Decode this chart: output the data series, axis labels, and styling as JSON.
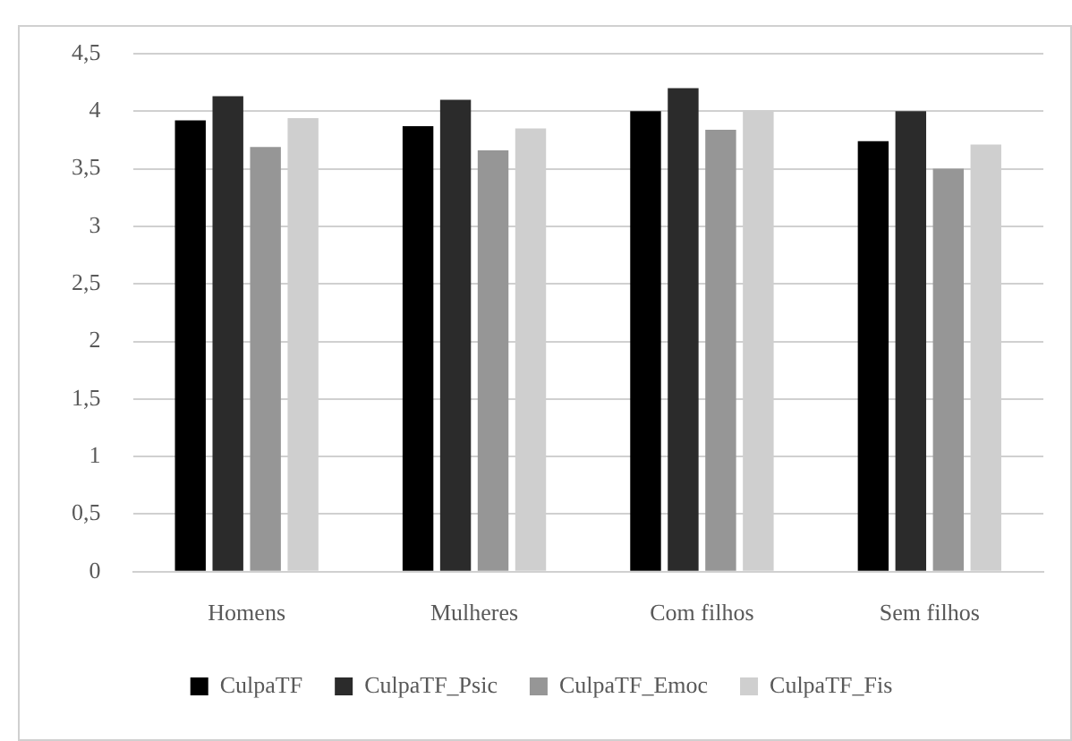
{
  "chart_data": {
    "type": "bar",
    "categories": [
      "Homens",
      "Mulheres",
      "Com filhos",
      "Sem filhos"
    ],
    "series": [
      {
        "name": "CulpaTF",
        "color": "#000000",
        "values": [
          3.92,
          3.87,
          4.0,
          3.74
        ]
      },
      {
        "name": "CulpaTF_Psic",
        "color": "#2b2b2b",
        "values": [
          4.13,
          4.1,
          4.2,
          4.0
        ]
      },
      {
        "name": "CulpaTF_Emoc",
        "color": "#969696",
        "values": [
          3.69,
          3.66,
          3.84,
          3.5
        ]
      },
      {
        "name": "CulpaTF_Fis",
        "color": "#cfcfcf",
        "values": [
          3.94,
          3.85,
          4.01,
          3.71
        ]
      }
    ],
    "ylim": [
      0,
      4.5
    ],
    "yticks": [
      0,
      {
        "value": 0.5,
        "label": "0,5"
      },
      1,
      {
        "value": 1.5,
        "label": "1,5"
      },
      2,
      {
        "value": 2.5,
        "label": "2,5"
      },
      3,
      {
        "value": 3.5,
        "label": "3,5"
      },
      4,
      {
        "value": 4.5,
        "label": "4,5"
      }
    ],
    "grid": "y",
    "legend": "bottom"
  }
}
